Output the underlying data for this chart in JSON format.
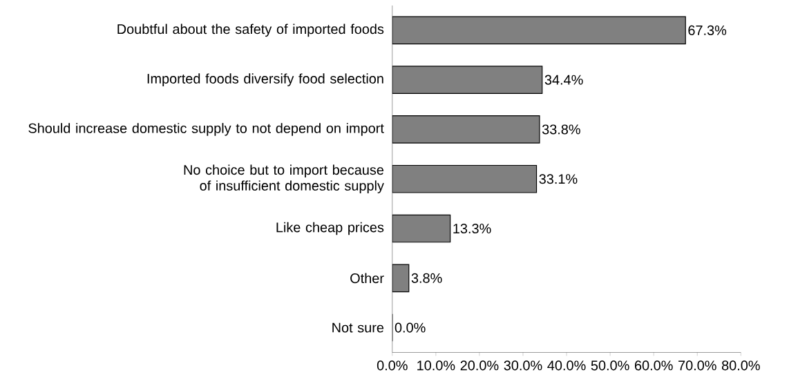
{
  "chart_data": {
    "type": "bar",
    "orientation": "horizontal",
    "categories": [
      "Doubtful about the safety of imported foods",
      "Imported foods diversify food selection",
      "Should increase domestic supply to not depend on import",
      "No choice but to import because of insufficient domestic supply",
      "Like cheap prices",
      "Other",
      "Not sure"
    ],
    "values": [
      67.3,
      34.4,
      33.8,
      33.1,
      13.3,
      3.8,
      0.0
    ],
    "value_labels": [
      "67.3%",
      "34.4%",
      "33.8%",
      "33.1%",
      "13.3%",
      "3.8%",
      "0.0%"
    ],
    "color": "#808080",
    "xlim": [
      0,
      80
    ],
    "xticks": [
      {
        "value": 0,
        "label": "0.0%"
      },
      {
        "value": 10,
        "label": "10.0%"
      },
      {
        "value": 20,
        "label": "20.0%"
      },
      {
        "value": 30,
        "label": "30.0%"
      },
      {
        "value": 40,
        "label": "40.0%"
      },
      {
        "value": 50,
        "label": "50.0%"
      },
      {
        "value": 60,
        "label": "60.0%"
      },
      {
        "value": 70,
        "label": "70.0%"
      },
      {
        "value": 80,
        "label": "80.0%"
      }
    ],
    "grid": false
  }
}
